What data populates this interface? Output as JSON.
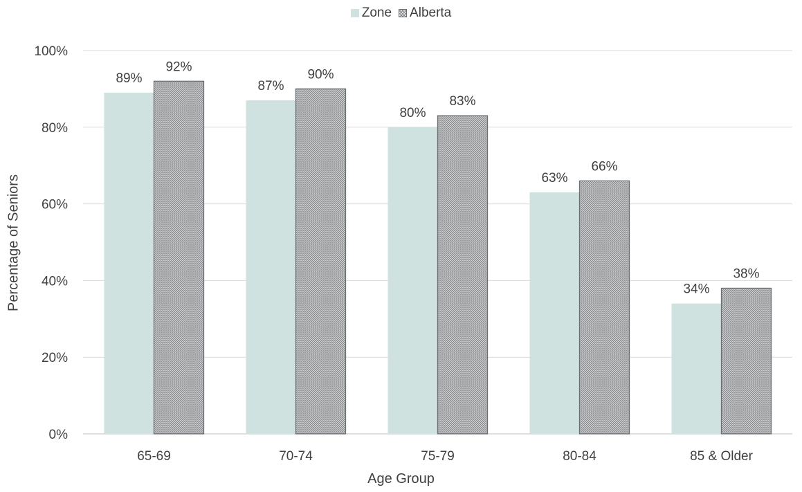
{
  "chart_data": {
    "type": "bar",
    "title": "",
    "xlabel": "Age Group",
    "ylabel": "Percentage of Seniors",
    "categories": [
      "65-69",
      "70-74",
      "75-79",
      "80-84",
      "85 & Older"
    ],
    "series": [
      {
        "name": "Zone",
        "values": [
          89,
          87,
          80,
          63,
          34
        ],
        "labels": [
          "89%",
          "87%",
          "80%",
          "63%",
          "34%"
        ]
      },
      {
        "name": "Alberta",
        "values": [
          92,
          90,
          83,
          66,
          38
        ],
        "labels": [
          "92%",
          "90%",
          "83%",
          "66%",
          "38%"
        ]
      }
    ],
    "ylim": [
      0,
      100
    ],
    "yticks": [
      "0%",
      "20%",
      "40%",
      "60%",
      "80%",
      "100%"
    ],
    "grid": true,
    "legend_position": "top-center",
    "colors": {
      "Zone": "#cfe2e0",
      "Alberta": "#8a8d90",
      "grid": "#d9d9d9",
      "text": "#404040"
    }
  }
}
